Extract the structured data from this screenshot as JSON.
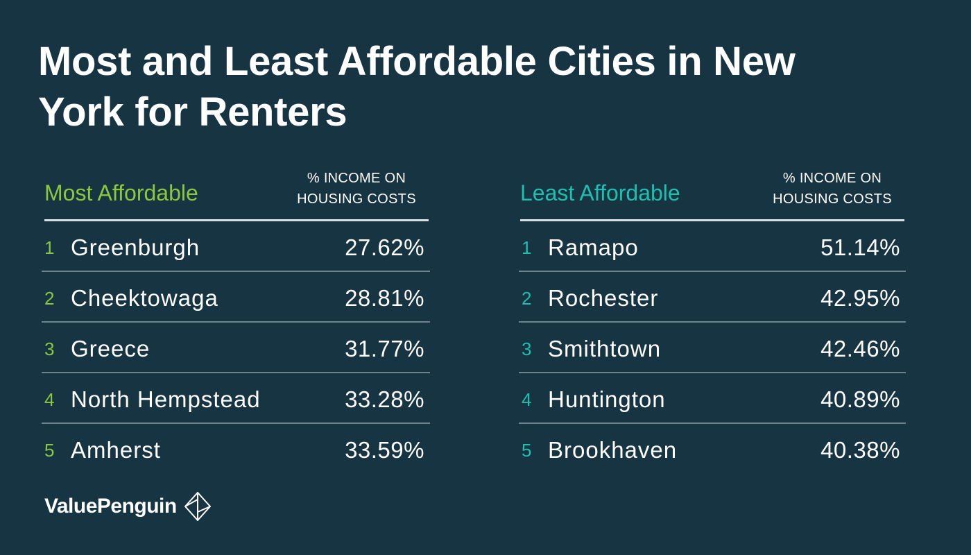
{
  "title": "Most and Least Affordable Cities in New York for Renters",
  "colors": {
    "background": "#173443",
    "most_accent": "#8dc63f",
    "least_accent": "#1fbfae",
    "text": "#ffffff"
  },
  "chart_data": {
    "type": "table",
    "title": "Most and Least Affordable Cities in New York for Renters",
    "tables": [
      {
        "name": "Most Affordable",
        "column_header": [
          "% INCOME ON",
          "HOUSING COSTS"
        ],
        "rows": [
          {
            "rank": "1",
            "city": "Greenburgh",
            "value": "27.62%"
          },
          {
            "rank": "2",
            "city": "Cheektowaga",
            "value": "28.81%"
          },
          {
            "rank": "3",
            "city": "Greece",
            "value": "31.77%"
          },
          {
            "rank": "4",
            "city": "North Hempstead",
            "value": "33.28%"
          },
          {
            "rank": "5",
            "city": "Amherst",
            "value": "33.59%"
          }
        ]
      },
      {
        "name": "Least Affordable",
        "column_header": [
          "% INCOME ON",
          "HOUSING COSTS"
        ],
        "rows": [
          {
            "rank": "1",
            "city": "Ramapo",
            "value": "51.14%"
          },
          {
            "rank": "2",
            "city": "Rochester",
            "value": "42.95%"
          },
          {
            "rank": "3",
            "city": "Smithtown",
            "value": "42.46%"
          },
          {
            "rank": "4",
            "city": "Huntington",
            "value": "40.89%"
          },
          {
            "rank": "5",
            "city": "Brookhaven",
            "value": "40.38%"
          }
        ]
      }
    ]
  },
  "footer": {
    "logo_text": "ValuePenguin",
    "logo_icon": "valuepenguin-logo-icon"
  }
}
